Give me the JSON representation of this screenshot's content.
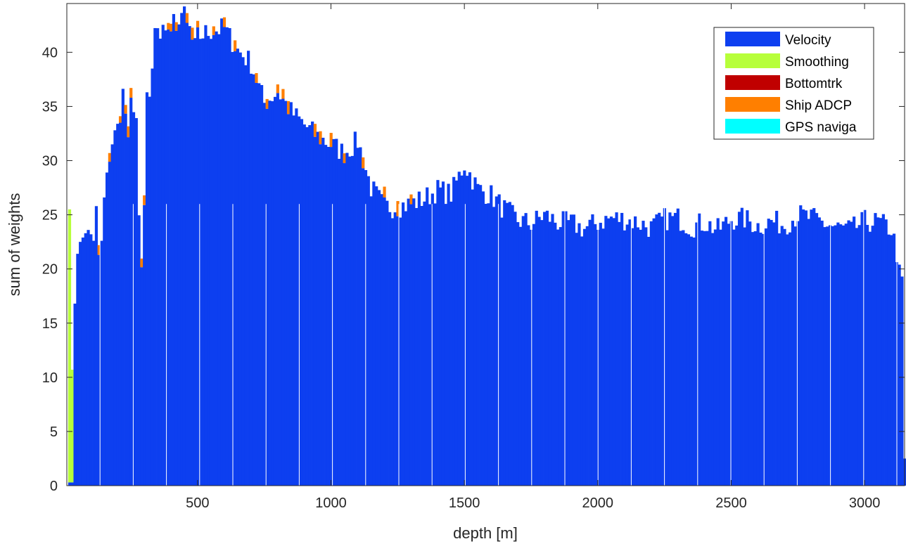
{
  "chart_data": {
    "type": "bar",
    "stacked": true,
    "title": "",
    "xlabel": "depth [m]",
    "ylabel": "sum of weights",
    "xlim": [
      10,
      3150
    ],
    "ylim": [
      0,
      44.5
    ],
    "bin_width": 10,
    "xticks": [
      500,
      1000,
      1500,
      2000,
      2500,
      3000
    ],
    "yticks": [
      0,
      5,
      10,
      15,
      20,
      25,
      30,
      35,
      40
    ],
    "grid": false,
    "legend_position": "top-right",
    "legend": [
      "Velocity",
      "Smoothing",
      "Bottomtrk",
      "Ship ADCP",
      "GPS naviga"
    ],
    "colors": {
      "Velocity": "#0d3ff0",
      "Smoothing": "#b7ff3a",
      "Bottomtrk": "#c00000",
      "Ship ADCP": "#ff7f00",
      "GPS naviga": "#00ffff"
    },
    "series": [
      {
        "name": "Velocity",
        "x": [
          20,
          30,
          40,
          50,
          60,
          70,
          80,
          90,
          100,
          110,
          120,
          130,
          140,
          150,
          160,
          170,
          180,
          190,
          200,
          210,
          220,
          230,
          240,
          250,
          260,
          270,
          280,
          290,
          300,
          310,
          320,
          330,
          340,
          350,
          360,
          370,
          380,
          390,
          400,
          410,
          420,
          430,
          440,
          450,
          460,
          470,
          480,
          490,
          500,
          550,
          600,
          650,
          700,
          750,
          800,
          850,
          900,
          950,
          1000,
          1050,
          1100,
          1150,
          1200,
          1250,
          1300,
          1350,
          1400,
          1450,
          1500,
          1550,
          1600,
          1650,
          1700,
          1750,
          1800,
          1850,
          1900,
          1950,
          2000,
          2050,
          2100,
          2150,
          2200,
          2250,
          2300,
          2350,
          2400,
          2450,
          2500,
          2550,
          2600,
          2650,
          2700,
          2750,
          2800,
          2850,
          2900,
          2950,
          3000,
          3050,
          3100,
          3140,
          3150
        ],
        "values": [
          0.3,
          0.3,
          16.8,
          21.4,
          22.5,
          22.9,
          23.3,
          23.6,
          23.2,
          22.6,
          25.8,
          21.3,
          22.6,
          26.6,
          28.9,
          29.9,
          31.5,
          32.8,
          33.4,
          34.6,
          35.7,
          34.8,
          32.8,
          35.3,
          34.4,
          34.3,
          24.4,
          19.6,
          25.8,
          35.9,
          35.6,
          37.8,
          42.8,
          42.5,
          40.8,
          42.1,
          43.0,
          41.7,
          42.0,
          42.6,
          41.3,
          43.4,
          43.6,
          43.3,
          42.3,
          42.1,
          41.0,
          40.4,
          41.4,
          42.0,
          42.2,
          40.2,
          39.0,
          35.3,
          36.4,
          34.5,
          33.3,
          32.2,
          31.5,
          30.7,
          31.8,
          27.5,
          25.7,
          25.8,
          26.0,
          26.5,
          27.3,
          26.9,
          29.7,
          27.4,
          26.8,
          25.5,
          24.5,
          24.2,
          25.0,
          24.3,
          24.2,
          23.7,
          24.3,
          24.7,
          24.6,
          24.3,
          23.8,
          24.6,
          24.7,
          23.9,
          24.3,
          23.6,
          24.6,
          24.6,
          24.0,
          24.4,
          24.1,
          25.0,
          24.7,
          24.2,
          23.8,
          23.6,
          24.4,
          24.3,
          23.7,
          19.3,
          2.5
        ]
      },
      {
        "name": "Smoothing",
        "x": [
          10,
          20,
          30
        ],
        "values": [
          18.0,
          25.2,
          10.4
        ]
      },
      {
        "name": "Ship ADCP",
        "x": [
          130,
          170,
          210,
          230,
          240,
          250,
          290,
          300,
          390,
          400,
          420,
          460,
          480,
          500,
          560,
          600,
          640,
          720,
          760,
          800,
          820,
          840,
          940,
          960,
          1000,
          1050,
          1120,
          1200,
          1250,
          1300
        ],
        "values": [
          0.9,
          0.8,
          0.6,
          0.8,
          1.0,
          0.9,
          0.8,
          0.9,
          0.6,
          0.7,
          0.8,
          0.9,
          1.1,
          0.6,
          0.8,
          0.9,
          1.0,
          0.9,
          0.9,
          0.8,
          0.9,
          1.2,
          1.2,
          1.2,
          1.3,
          0.9,
          1.0,
          1.0,
          1.4,
          0.9
        ]
      },
      {
        "name": "Bottomtrk",
        "x": [],
        "values": []
      },
      {
        "name": "GPS naviga",
        "x": [],
        "values": []
      }
    ]
  }
}
